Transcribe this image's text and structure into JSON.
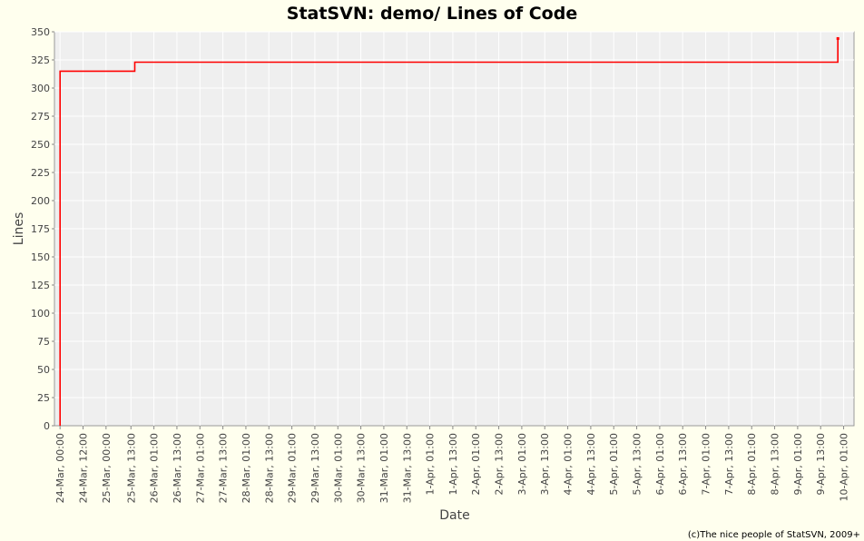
{
  "chart_data": {
    "type": "line",
    "title": "StatSVN: demo/ Lines of Code",
    "xlabel": "Date",
    "ylabel": "Lines",
    "ylim": [
      0,
      350
    ],
    "y_ticks": [
      0,
      25,
      50,
      75,
      100,
      125,
      150,
      175,
      200,
      225,
      250,
      275,
      300,
      325,
      350
    ],
    "x_tick_labels": [
      "24-Mar, 00:00",
      "24-Mar, 12:00",
      "25-Mar, 00:00",
      "25-Mar, 13:00",
      "26-Mar, 01:00",
      "26-Mar, 13:00",
      "27-Mar, 01:00",
      "27-Mar, 13:00",
      "28-Mar, 01:00",
      "28-Mar, 13:00",
      "29-Mar, 01:00",
      "29-Mar, 13:00",
      "30-Mar, 01:00",
      "30-Mar, 13:00",
      "31-Mar, 01:00",
      "31-Mar, 13:00",
      "1-Apr, 01:00",
      "1-Apr, 13:00",
      "2-Apr, 01:00",
      "2-Apr, 13:00",
      "3-Apr, 01:00",
      "3-Apr, 13:00",
      "4-Apr, 01:00",
      "4-Apr, 13:00",
      "5-Apr, 01:00",
      "5-Apr, 13:00",
      "6-Apr, 01:00",
      "6-Apr, 13:00",
      "7-Apr, 01:00",
      "7-Apr, 13:00",
      "8-Apr, 01:00",
      "8-Apr, 13:00",
      "9-Apr, 01:00",
      "9-Apr, 13:00",
      "10-Apr, 01:00"
    ],
    "step": true,
    "grid": true,
    "series": [
      {
        "x": [
          "24-Mar, 00:00",
          "24-Mar, 00:00",
          "25-Mar, 15:00",
          "25-Mar, 15:00",
          "9-Apr, 22:00",
          "9-Apr, 22:00"
        ],
        "y": [
          0,
          315,
          315,
          323,
          323,
          344
        ],
        "color": "#ff0000"
      }
    ],
    "plot_background": "#efefef",
    "page_background": "#ffffee",
    "gridline_color": "#ffffff"
  },
  "footer": {
    "credit": "(c)The nice people of StatSVN, 2009+"
  }
}
